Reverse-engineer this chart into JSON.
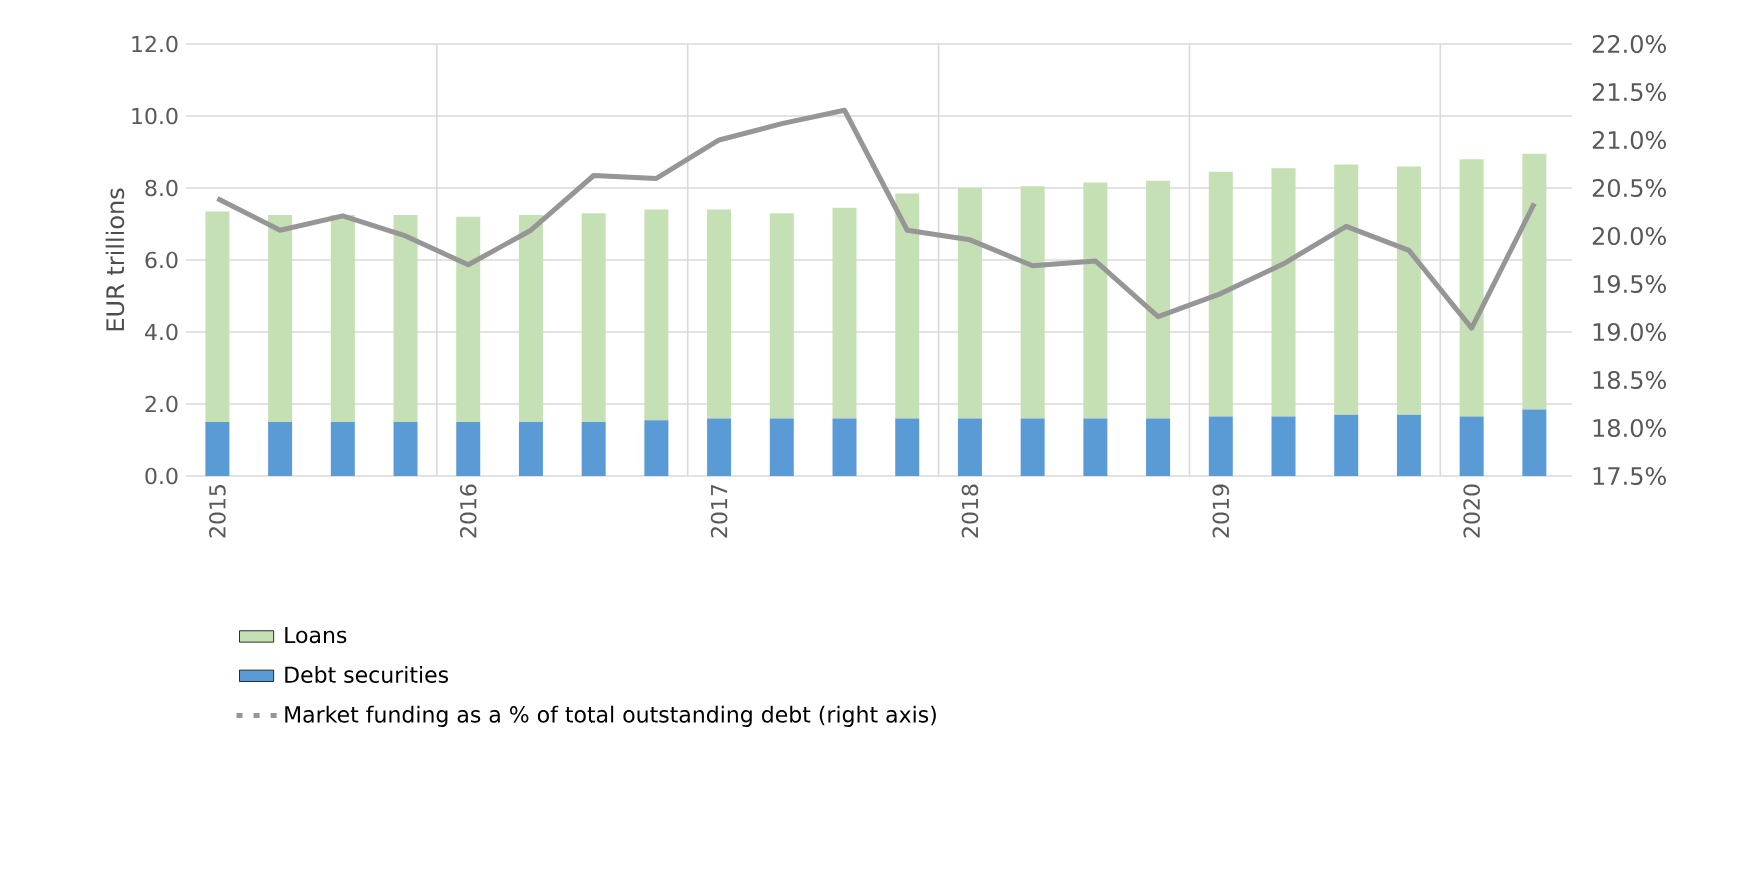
{
  "chart_data": {
    "type": "bar",
    "stacked": true,
    "ylabel": "EUR trillions",
    "categories": [
      "2015",
      null,
      null,
      null,
      "2016",
      null,
      null,
      null,
      "2017",
      null,
      null,
      null,
      "2018",
      null,
      null,
      null,
      "2019",
      null,
      null,
      null,
      "2020",
      null
    ],
    "series": [
      {
        "name": "Debt securities",
        "color": "#5b9bd5",
        "values": [
          1.5,
          1.5,
          1.5,
          1.5,
          1.5,
          1.5,
          1.5,
          1.55,
          1.6,
          1.6,
          1.6,
          1.6,
          1.6,
          1.6,
          1.6,
          1.6,
          1.65,
          1.65,
          1.7,
          1.7,
          1.65,
          1.85
        ]
      },
      {
        "name": "Loans",
        "color": "#c5e0b4",
        "values": [
          5.85,
          5.75,
          5.75,
          5.75,
          5.7,
          5.75,
          5.8,
          5.85,
          5.8,
          5.7,
          5.85,
          6.25,
          6.4,
          6.45,
          6.55,
          6.6,
          6.8,
          6.9,
          6.95,
          6.9,
          7.15,
          7.1
        ]
      },
      {
        "name": "Market funding as a % of total outstanding debt (right axis)",
        "type": "line",
        "axis": "y2",
        "color": "#969696",
        "values": [
          20.39,
          20.06,
          20.21,
          20.0,
          19.7,
          20.06,
          20.63,
          20.6,
          21.0,
          21.17,
          21.31,
          20.06,
          19.96,
          19.69,
          19.74,
          19.16,
          19.4,
          19.71,
          20.1,
          19.85,
          19.04,
          20.34
        ]
      }
    ],
    "ylim": [
      0,
      12
    ],
    "yticks": [
      {
        "value": 0,
        "label": "0.0"
      },
      {
        "value": 2,
        "label": "2.0"
      },
      {
        "value": 4,
        "label": "4.0"
      },
      {
        "value": 6,
        "label": "6.0"
      },
      {
        "value": 8,
        "label": "8.0"
      },
      {
        "value": 10,
        "label": "10.0"
      },
      {
        "value": 12,
        "label": "12.0"
      }
    ],
    "y2lim": [
      17.5,
      22
    ],
    "y2ticks": [
      {
        "value": 17.5,
        "label": "17.5%"
      },
      {
        "value": 18,
        "label": "18.0%"
      },
      {
        "value": 18.5,
        "label": "18.5%"
      },
      {
        "value": 19,
        "label": "19.0%"
      },
      {
        "value": 19.5,
        "label": "19.5%"
      },
      {
        "value": 20,
        "label": "20.0%"
      },
      {
        "value": 20.5,
        "label": "20.5%"
      },
      {
        "value": 21,
        "label": "21.0%"
      },
      {
        "value": 21.5,
        "label": "21.5%"
      },
      {
        "value": 22,
        "label": "22.0%"
      }
    ],
    "grid": true,
    "legend": "bottom left",
    "marker": "none",
    "line_style": "solid"
  }
}
